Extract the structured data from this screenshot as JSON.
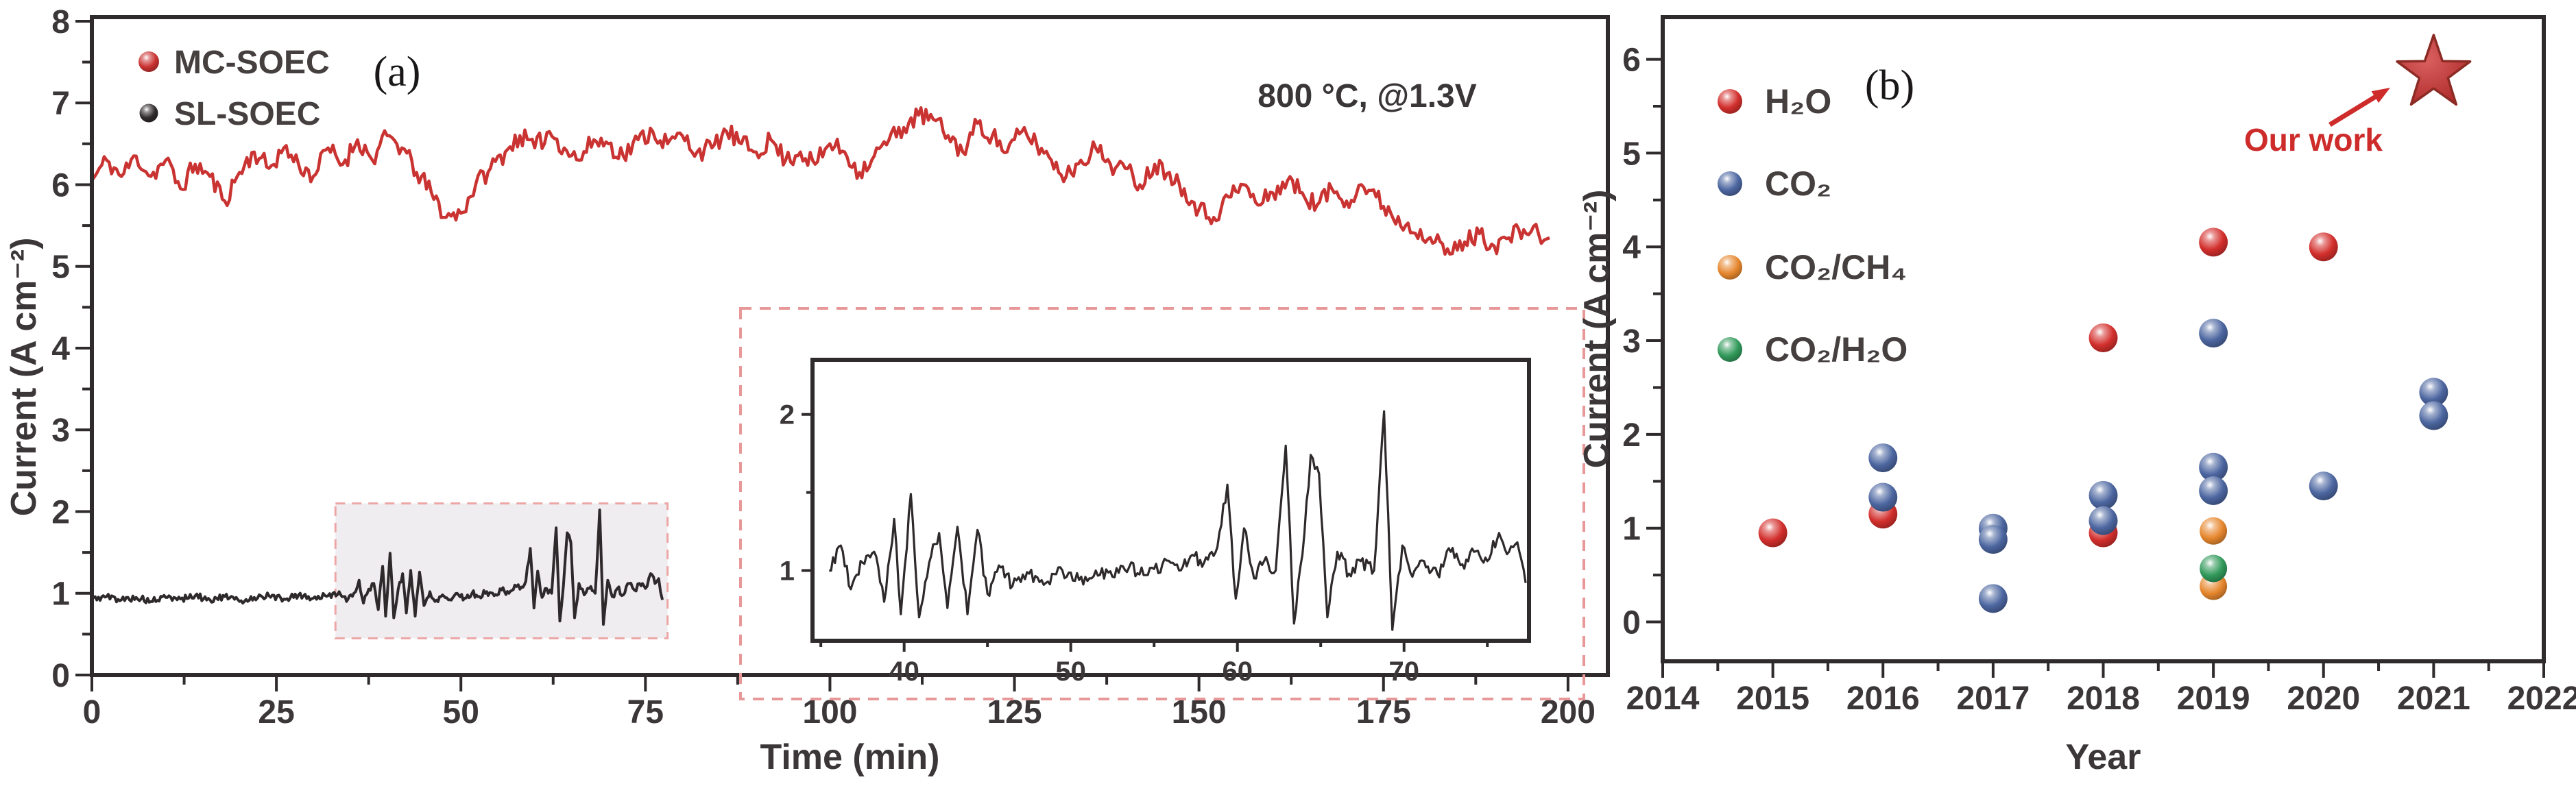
{
  "chart_data": [
    {
      "id": "panel_a",
      "type": "line",
      "panel_label": "(a)",
      "xlabel": "Time (min)",
      "ylabel": "Current (A cm⁻²)",
      "annotation": "800 °C, @1.3V",
      "xlim": [
        0,
        205.4
      ],
      "ylim": [
        0,
        8.05
      ],
      "xticks": [
        0,
        25,
        50,
        75,
        100,
        125,
        150,
        175,
        200
      ],
      "xminor": [
        12.5,
        37.5,
        62.5,
        87.5,
        112.5,
        137.5,
        162.5,
        187.5
      ],
      "yticks": [
        0,
        1,
        2,
        3,
        4,
        5,
        6,
        7,
        8
      ],
      "yminor": [
        0.5,
        1.5,
        2.5,
        3.5,
        4.5,
        5.5,
        6.5,
        7.5
      ],
      "grid": false,
      "legend_position": "top-left",
      "legend": [
        {
          "label": "MC-SOEC",
          "color": "#c93331"
        },
        {
          "label": "SL-SOEC",
          "color": "#2e292b"
        }
      ],
      "highlight_box": {
        "x0": 33,
        "x1": 78,
        "y0": 0.45,
        "y1": 2.1,
        "fill": "#efedf0",
        "border": "#eca6a6"
      },
      "series": [
        {
          "name": "MC-SOEC",
          "color": "#c93331",
          "noise": 0.12,
          "step": 0.35,
          "seed": 11,
          "keypoints": [
            [
              0,
              6.05
            ],
            [
              2,
              6.3
            ],
            [
              4,
              6.1
            ],
            [
              6,
              6.35
            ],
            [
              8,
              6.1
            ],
            [
              10,
              6.3
            ],
            [
              12,
              5.95
            ],
            [
              14,
              6.25
            ],
            [
              16,
              6.1
            ],
            [
              18,
              5.8
            ],
            [
              20,
              6.15
            ],
            [
              22,
              6.4
            ],
            [
              24,
              6.2
            ],
            [
              26,
              6.45
            ],
            [
              28,
              6.25
            ],
            [
              30,
              6.1
            ],
            [
              32,
              6.45
            ],
            [
              34,
              6.25
            ],
            [
              36,
              6.55
            ],
            [
              38,
              6.3
            ],
            [
              40,
              6.6
            ],
            [
              42,
              6.45
            ],
            [
              44,
              6.15
            ],
            [
              46,
              5.9
            ],
            [
              48,
              5.6
            ],
            [
              50,
              5.65
            ],
            [
              52,
              6.0
            ],
            [
              54,
              6.2
            ],
            [
              56,
              6.4
            ],
            [
              58,
              6.6
            ],
            [
              60,
              6.45
            ],
            [
              62,
              6.65
            ],
            [
              64,
              6.45
            ],
            [
              66,
              6.3
            ],
            [
              68,
              6.55
            ],
            [
              70,
              6.5
            ],
            [
              72,
              6.35
            ],
            [
              74,
              6.55
            ],
            [
              76,
              6.65
            ],
            [
              78,
              6.5
            ],
            [
              80,
              6.6
            ],
            [
              82,
              6.4
            ],
            [
              84,
              6.45
            ],
            [
              86,
              6.65
            ],
            [
              88,
              6.5
            ],
            [
              90,
              6.4
            ],
            [
              92,
              6.55
            ],
            [
              94,
              6.3
            ],
            [
              96,
              6.4
            ],
            [
              98,
              6.25
            ],
            [
              100,
              6.5
            ],
            [
              102,
              6.4
            ],
            [
              104,
              6.15
            ],
            [
              106,
              6.35
            ],
            [
              108,
              6.55
            ],
            [
              110,
              6.7
            ],
            [
              112,
              6.85
            ],
            [
              114,
              6.8
            ],
            [
              116,
              6.6
            ],
            [
              118,
              6.4
            ],
            [
              120,
              6.75
            ],
            [
              122,
              6.6
            ],
            [
              124,
              6.4
            ],
            [
              126,
              6.65
            ],
            [
              128,
              6.5
            ],
            [
              130,
              6.3
            ],
            [
              132,
              6.1
            ],
            [
              134,
              6.3
            ],
            [
              136,
              6.45
            ],
            [
              138,
              6.25
            ],
            [
              140,
              6.2
            ],
            [
              142,
              6.0
            ],
            [
              144,
              6.25
            ],
            [
              146,
              6.15
            ],
            [
              148,
              5.95
            ],
            [
              150,
              5.7
            ],
            [
              152,
              5.6
            ],
            [
              154,
              5.85
            ],
            [
              156,
              6.0
            ],
            [
              158,
              5.75
            ],
            [
              160,
              5.9
            ],
            [
              162,
              6.05
            ],
            [
              164,
              5.9
            ],
            [
              166,
              5.75
            ],
            [
              168,
              5.95
            ],
            [
              170,
              5.8
            ],
            [
              172,
              6.0
            ],
            [
              174,
              5.85
            ],
            [
              176,
              5.65
            ],
            [
              178,
              5.5
            ],
            [
              180,
              5.45
            ],
            [
              182,
              5.3
            ],
            [
              184,
              5.15
            ],
            [
              186,
              5.3
            ],
            [
              188,
              5.4
            ],
            [
              190,
              5.25
            ],
            [
              192,
              5.35
            ],
            [
              194,
              5.45
            ],
            [
              196,
              5.4
            ],
            [
              197.5,
              5.35
            ]
          ]
        },
        {
          "name": "SL-SOEC",
          "color": "#2e292b",
          "noise": 0.04,
          "step": 0.22,
          "seed": 5,
          "keypoints": [
            [
              0,
              0.93
            ],
            [
              2,
              0.96
            ],
            [
              4,
              0.92
            ],
            [
              6,
              0.95
            ],
            [
              8,
              0.9
            ],
            [
              10,
              0.95
            ],
            [
              12,
              0.93
            ],
            [
              14,
              0.97
            ],
            [
              16,
              0.92
            ],
            [
              18,
              0.96
            ],
            [
              20,
              0.9
            ],
            [
              22,
              0.95
            ],
            [
              24,
              0.97
            ],
            [
              26,
              0.93
            ],
            [
              28,
              0.98
            ],
            [
              30,
              0.94
            ],
            [
              32,
              0.97
            ],
            [
              33.5,
              1.02
            ],
            [
              34.5,
              0.9
            ],
            [
              35.5,
              1.0
            ],
            [
              36.2,
              1.16
            ],
            [
              36.8,
              0.88
            ],
            [
              37.5,
              1.05
            ],
            [
              38.2,
              1.12
            ],
            [
              38.8,
              0.8
            ],
            [
              39.4,
              1.33
            ],
            [
              39.8,
              0.72
            ],
            [
              40.4,
              1.49
            ],
            [
              40.9,
              0.7
            ],
            [
              41.5,
              1.05
            ],
            [
              42.1,
              1.24
            ],
            [
              42.6,
              0.76
            ],
            [
              43.2,
              1.28
            ],
            [
              43.8,
              0.72
            ],
            [
              44.4,
              1.26
            ],
            [
              45,
              0.85
            ],
            [
              45.8,
              1.02
            ],
            [
              46.5,
              0.9
            ],
            [
              47.5,
              0.98
            ],
            [
              48.5,
              0.92
            ],
            [
              49.5,
              1.0
            ],
            [
              50.5,
              0.94
            ],
            [
              51.5,
              1.0
            ],
            [
              52.5,
              0.96
            ],
            [
              53.5,
              1.02
            ],
            [
              54.5,
              0.97
            ],
            [
              55.5,
              1.04
            ],
            [
              56.5,
              1.0
            ],
            [
              57.3,
              1.1
            ],
            [
              58,
              1.05
            ],
            [
              58.8,
              1.15
            ],
            [
              59.4,
              1.55
            ],
            [
              59.9,
              0.82
            ],
            [
              60.4,
              1.27
            ],
            [
              61,
              0.95
            ],
            [
              61.6,
              1.06
            ],
            [
              62.3,
              1.0
            ],
            [
              62.9,
              1.8
            ],
            [
              63.4,
              0.66
            ],
            [
              63.9,
              1.1
            ],
            [
              64.4,
              1.74
            ],
            [
              64.9,
              1.62
            ],
            [
              65.4,
              0.7
            ],
            [
              66,
              1.12
            ],
            [
              66.7,
              0.98
            ],
            [
              67.4,
              1.06
            ],
            [
              68.2,
              1.0
            ],
            [
              68.8,
              2.02
            ],
            [
              69.3,
              0.62
            ],
            [
              69.9,
              1.16
            ],
            [
              70.5,
              0.96
            ],
            [
              71.2,
              1.06
            ],
            [
              72,
              0.98
            ],
            [
              72.8,
              1.12
            ],
            [
              73.5,
              1.04
            ],
            [
              74.2,
              1.12
            ],
            [
              75,
              1.06
            ],
            [
              75.7,
              1.24
            ],
            [
              76.3,
              1.12
            ],
            [
              76.8,
              1.18
            ],
            [
              77.3,
              0.92
            ]
          ]
        }
      ],
      "inset": {
        "series": "SL-SOEC",
        "xlim": [
          34.5,
          77.5
        ],
        "ylim": [
          0.55,
          2.35
        ],
        "xticks": [
          40,
          50,
          60,
          70
        ],
        "xminor": [
          35,
          45,
          55,
          65,
          75
        ],
        "yticks": [
          1,
          2
        ],
        "yminor": [
          1.5
        ],
        "noise": 0.045,
        "step": 0.12,
        "seed": 9,
        "border": "#e89898"
      }
    },
    {
      "id": "panel_b",
      "type": "scatter",
      "panel_label": "(b)",
      "xlabel": "Year",
      "ylabel": "Current (A cm⁻²)",
      "xlim": [
        2014,
        2022
      ],
      "ylim": [
        -0.42,
        6.45
      ],
      "xticks": [
        2014,
        2015,
        2016,
        2017,
        2018,
        2019,
        2020,
        2021,
        2022
      ],
      "xminor": [
        2014.5,
        2015.5,
        2016.5,
        2017.5,
        2018.5,
        2019.5,
        2020.5,
        2021.5
      ],
      "yticks": [
        0,
        1,
        2,
        3,
        4,
        5,
        6
      ],
      "yminor": [
        0.5,
        1.5,
        2.5,
        3.5,
        4.5,
        5.5
      ],
      "grid": false,
      "legend_position": "top-left",
      "series": [
        {
          "name": "H₂O",
          "color": "#d22f2c",
          "r": 21,
          "points": [
            [
              2015,
              0.95
            ],
            [
              2016,
              1.15
            ],
            [
              2018,
              0.95
            ],
            [
              2018,
              3.03
            ],
            [
              2019,
              4.05
            ],
            [
              2020,
              4.0
            ]
          ]
        },
        {
          "name": "CO₂",
          "color": "#4c66a0",
          "r": 21,
          "points": [
            [
              2016,
              1.75
            ],
            [
              2016,
              1.33
            ],
            [
              2017,
              1.0
            ],
            [
              2017,
              0.88
            ],
            [
              2017,
              0.25
            ],
            [
              2018,
              1.35
            ],
            [
              2018,
              1.08
            ],
            [
              2019,
              3.08
            ],
            [
              2019,
              1.65
            ],
            [
              2019,
              1.4
            ],
            [
              2020,
              1.45
            ],
            [
              2021,
              2.45
            ],
            [
              2021,
              2.2
            ]
          ]
        },
        {
          "name": "CO₂/CH₄",
          "color": "#e6872e",
          "r": 20,
          "points": [
            [
              2019,
              0.97
            ],
            [
              2019,
              0.38
            ]
          ]
        },
        {
          "name": "CO₂/H₂O",
          "color": "#31995a",
          "r": 20,
          "points": [
            [
              2019,
              0.57
            ]
          ]
        }
      ],
      "star": {
        "x": 2021,
        "y": 5.85,
        "label": "Our work",
        "color": "#ce2b2b"
      }
    }
  ],
  "colors": {
    "spine": "#2f2a2b",
    "tick_label": "#3b3637",
    "legend_label": "#45403f",
    "annotation": "#3a3536"
  }
}
